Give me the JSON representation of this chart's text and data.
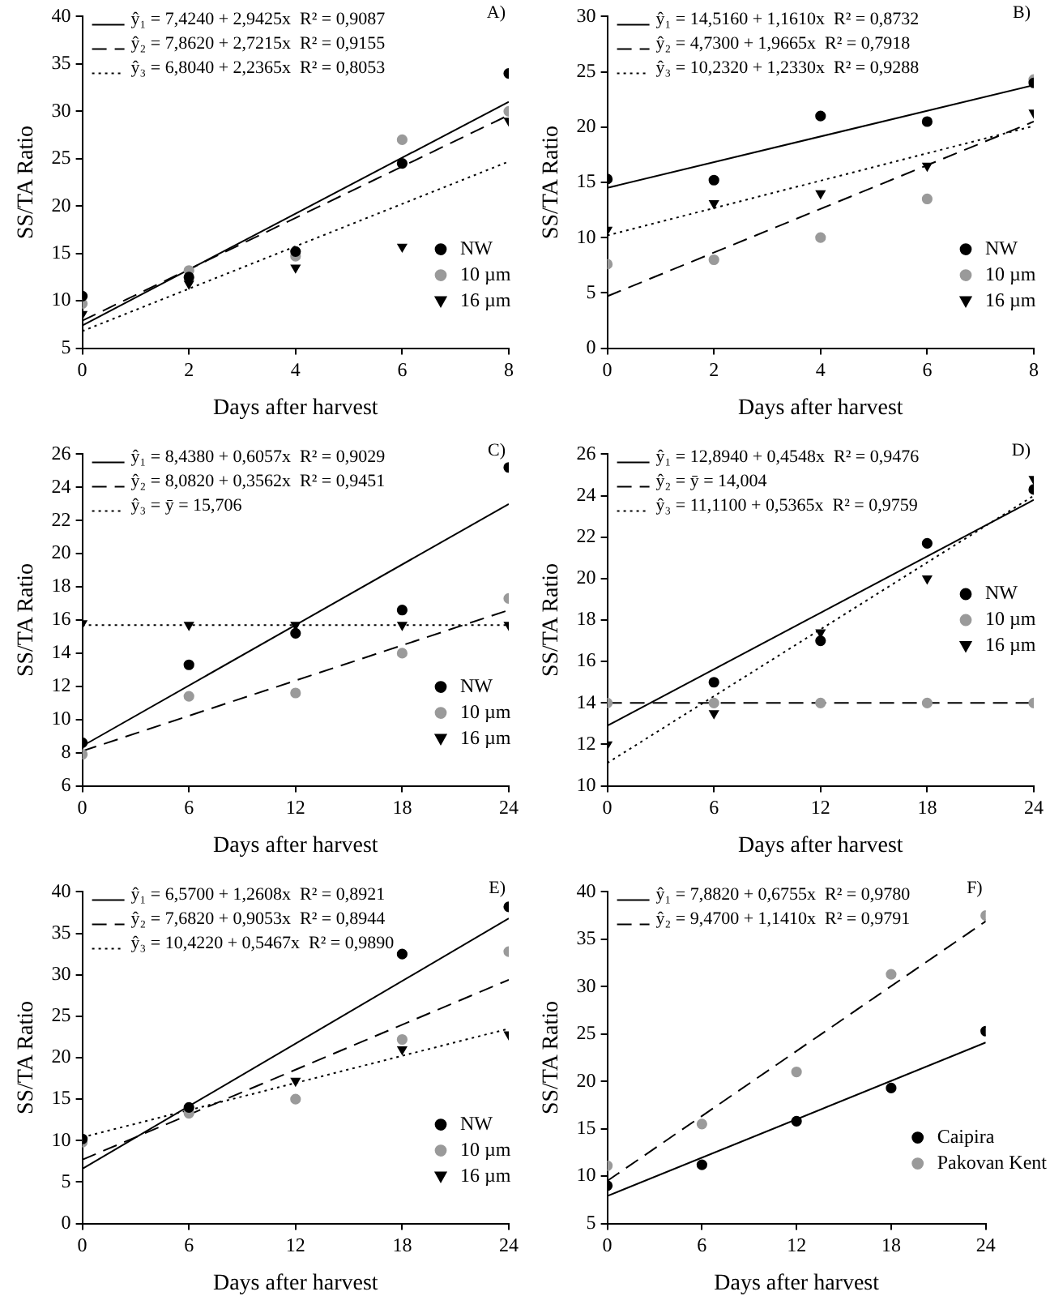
{
  "chart_data": [
    {
      "type": "scatter",
      "xlabel": "Days after harvest",
      "ylabel": "SS/TA Ratio",
      "x": [
        0,
        2,
        4,
        6,
        8
      ],
      "xlim": [
        0,
        8
      ],
      "xticks": [
        0,
        2,
        4,
        6,
        8
      ],
      "ylim": [
        5,
        40
      ],
      "yticks": [
        5,
        10,
        15,
        20,
        25,
        30,
        35,
        40
      ],
      "grid": false,
      "legend": "bottom right",
      "annotations": [
        "A)",
        "ŷ₁ = 7,4240 + 2,9425x  R² = 0,9087",
        "ŷ₂ = 7,8620 + 2,7215x  R² = 0,9155",
        "ŷ₃ = 6,8040 + 2,2365x  R² = 0,8053"
      ],
      "series": [
        {
          "type": "line",
          "x": [
            0,
            8
          ],
          "values": [
            7.4,
            31.0
          ],
          "color": "#000000",
          "line_style": "solid",
          "marker": "none"
        },
        {
          "type": "line",
          "x": [
            0,
            8
          ],
          "values": [
            7.9,
            29.6
          ],
          "color": "#000000",
          "line_style": "dashed",
          "marker": "none"
        },
        {
          "type": "line",
          "x": [
            0,
            8
          ],
          "values": [
            6.8,
            24.7
          ],
          "color": "#000000",
          "line_style": "dotted",
          "marker": "none"
        },
        {
          "name": "NW",
          "color": "#000000",
          "marker": "circle",
          "values": [
            10.5,
            12.5,
            15.2,
            24.5,
            34
          ]
        },
        {
          "name": "10 µm",
          "color": "#9a9a9a",
          "marker": "circle",
          "values": [
            9.7,
            13.2,
            14.7,
            27,
            30
          ]
        },
        {
          "name": "16 µm",
          "color": "#000000",
          "marker": "triangle",
          "values": [
            8.6,
            11.8,
            13.5,
            15.7,
            29
          ]
        }
      ]
    },
    {
      "type": "scatter",
      "xlabel": "Days after harvest",
      "ylabel": "SS/TA Ratio",
      "x": [
        0,
        2,
        4,
        6,
        8
      ],
      "xlim": [
        0,
        8
      ],
      "xticks": [
        0,
        2,
        4,
        6,
        8
      ],
      "ylim": [
        0,
        30
      ],
      "yticks": [
        0,
        5,
        10,
        15,
        20,
        25,
        30
      ],
      "grid": false,
      "legend": "bottom right",
      "annotations": [
        "B)",
        "ŷ₁ = 14,5160 + 1,1610x  R² = 0,8732",
        "ŷ₂ = 4,7300 + 1,9665x  R² = 0,7918",
        "ŷ₃ = 10,2320 + 1,2330x  R² = 0,9288"
      ],
      "series": [
        {
          "type": "line",
          "x": [
            0,
            8
          ],
          "values": [
            14.5,
            23.8
          ],
          "color": "#000000",
          "line_style": "solid",
          "marker": "none"
        },
        {
          "type": "line",
          "x": [
            0,
            8
          ],
          "values": [
            4.7,
            20.5
          ],
          "color": "#000000",
          "line_style": "dashed",
          "marker": "none"
        },
        {
          "type": "line",
          "x": [
            0,
            8
          ],
          "values": [
            10.2,
            20.1
          ],
          "color": "#000000",
          "line_style": "dotted",
          "marker": "none"
        },
        {
          "name": "NW",
          "color": "#000000",
          "marker": "circle",
          "values": [
            15.3,
            15.2,
            21,
            20.5,
            24
          ]
        },
        {
          "name": "10 µm",
          "color": "#9a9a9a",
          "marker": "circle",
          "values": [
            7.6,
            8,
            10,
            13.5,
            24.3
          ]
        },
        {
          "name": "16 µm",
          "color": "#000000",
          "marker": "triangle",
          "values": [
            10.7,
            13.1,
            14,
            16.5,
            21.3
          ]
        }
      ]
    },
    {
      "type": "scatter",
      "xlabel": "Days after harvest",
      "ylabel": "SS/TA Ratio",
      "x": [
        0,
        6,
        12,
        18,
        24
      ],
      "xlim": [
        0,
        24
      ],
      "xticks": [
        0,
        6,
        12,
        18,
        24
      ],
      "ylim": [
        6,
        26
      ],
      "yticks": [
        6,
        8,
        10,
        12,
        14,
        16,
        18,
        20,
        22,
        24,
        26
      ],
      "grid": false,
      "legend": "bottom right",
      "annotations": [
        "C)",
        "ŷ₁ = 8,4380 + 0,6057x  R² = 0,9029",
        "ŷ₂ = 8,0820 + 0,3562x  R² = 0,9451",
        "ŷ₃ = ȳ = 15,706"
      ],
      "series": [
        {
          "type": "line",
          "x": [
            0,
            24
          ],
          "values": [
            8.4,
            23.0
          ],
          "color": "#000000",
          "line_style": "solid",
          "marker": "none"
        },
        {
          "type": "line",
          "x": [
            0,
            24
          ],
          "values": [
            8.1,
            16.6
          ],
          "color": "#000000",
          "line_style": "dashed",
          "marker": "none"
        },
        {
          "type": "line",
          "x": [
            0,
            24
          ],
          "values": [
            15.7,
            15.7
          ],
          "color": "#000000",
          "line_style": "dotted",
          "marker": "none"
        },
        {
          "name": "NW",
          "color": "#000000",
          "marker": "circle",
          "values": [
            8.6,
            13.3,
            15.2,
            16.6,
            25.2
          ]
        },
        {
          "name": "10 µm",
          "color": "#9a9a9a",
          "marker": "circle",
          "values": [
            7.9,
            11.4,
            11.6,
            14,
            17.3
          ]
        },
        {
          "name": "16 µm",
          "color": "#000000",
          "marker": "triangle",
          "values": [
            15.8,
            15.7,
            15.7,
            15.7,
            15.7
          ]
        }
      ]
    },
    {
      "type": "scatter",
      "xlabel": "Days after harvest",
      "ylabel": "SS/TA Ratio",
      "x": [
        0,
        6,
        12,
        18,
        24
      ],
      "xlim": [
        0,
        24
      ],
      "xticks": [
        0,
        6,
        12,
        18,
        24
      ],
      "ylim": [
        10,
        26
      ],
      "yticks": [
        10,
        12,
        14,
        16,
        18,
        20,
        22,
        24,
        26
      ],
      "grid": false,
      "legend": "right",
      "annotations": [
        "D)",
        "ŷ₁ = 12,8940 + 0,4548x  R² = 0,9476",
        "ŷ₂ = ȳ = 14,004",
        "ŷ₃ = 11,1100 + 0,5365x  R² = 0,9759"
      ],
      "series": [
        {
          "type": "line",
          "x": [
            0,
            24
          ],
          "values": [
            12.9,
            23.8
          ],
          "color": "#000000",
          "line_style": "solid",
          "marker": "none"
        },
        {
          "type": "line",
          "x": [
            0,
            24
          ],
          "values": [
            14.0,
            14.0
          ],
          "color": "#000000",
          "line_style": "dashed",
          "marker": "none"
        },
        {
          "type": "line",
          "x": [
            0,
            24
          ],
          "values": [
            11.1,
            24.0
          ],
          "color": "#000000",
          "line_style": "dotted",
          "marker": "none"
        },
        {
          "name": "NW",
          "color": "#000000",
          "marker": "circle",
          "values": [
            null,
            15,
            17,
            21.7,
            24.3
          ]
        },
        {
          "name": "10 µm",
          "color": "#9a9a9a",
          "marker": "circle",
          "values": [
            14,
            14,
            14,
            14,
            14
          ]
        },
        {
          "name": "16 µm",
          "color": "#000000",
          "marker": "triangle",
          "values": [
            12,
            13.5,
            17.4,
            20,
            24.8
          ]
        }
      ]
    },
    {
      "type": "scatter",
      "xlabel": "Days after harvest",
      "ylabel": "SS/TA Ratio",
      "x": [
        0,
        6,
        12,
        18,
        24
      ],
      "xlim": [
        0,
        24
      ],
      "xticks": [
        0,
        6,
        12,
        18,
        24
      ],
      "ylim": [
        0,
        40
      ],
      "yticks": [
        0,
        5,
        10,
        15,
        20,
        25,
        30,
        35,
        40
      ],
      "grid": false,
      "legend": "bottom right",
      "annotations": [
        "E)",
        "ŷ₁ = 6,5700 + 1,2608x  R² = 0,8921",
        "ŷ₂ = 7,6820 + 0,9053x  R² = 0,8944",
        "ŷ₃ = 10,4220 + 0,5467x  R² = 0,9890"
      ],
      "series": [
        {
          "type": "line",
          "x": [
            0,
            24
          ],
          "values": [
            6.6,
            36.8
          ],
          "color": "#000000",
          "line_style": "solid",
          "marker": "none"
        },
        {
          "type": "line",
          "x": [
            0,
            24
          ],
          "values": [
            7.7,
            29.4
          ],
          "color": "#000000",
          "line_style": "dashed",
          "marker": "none"
        },
        {
          "type": "line",
          "x": [
            0,
            24
          ],
          "values": [
            10.4,
            23.5
          ],
          "color": "#000000",
          "line_style": "dotted",
          "marker": "none"
        },
        {
          "name": "NW",
          "color": "#000000",
          "marker": "circle",
          "values": [
            10.2,
            14,
            null,
            32.5,
            38.2
          ]
        },
        {
          "name": "10 µm",
          "color": "#9a9a9a",
          "marker": "circle",
          "values": [
            9.8,
            13.3,
            15,
            22.2,
            32.8
          ]
        },
        {
          "name": "16 µm",
          "color": "#000000",
          "marker": "triangle",
          "values": [
            null,
            null,
            17.2,
            21,
            22.8
          ]
        }
      ]
    },
    {
      "type": "scatter",
      "xlabel": "Days after harvest",
      "ylabel": "SS/TA Ratio",
      "x": [
        0,
        6,
        12,
        18,
        24
      ],
      "xlim": [
        0,
        24
      ],
      "xticks": [
        0,
        6,
        12,
        18,
        24
      ],
      "ylim": [
        5,
        40
      ],
      "yticks": [
        5,
        10,
        15,
        20,
        25,
        30,
        35,
        40
      ],
      "grid": false,
      "legend": "bottom right",
      "annotations": [
        "F)",
        "ŷ₁ = 7,8820 + 0,6755x  R² = 0,9780",
        "ŷ₂ = 9,4700 + 1,1410x  R² = 0,9791"
      ],
      "series": [
        {
          "type": "line",
          "x": [
            0,
            24
          ],
          "values": [
            7.9,
            24.1
          ],
          "color": "#000000",
          "line_style": "solid",
          "marker": "none"
        },
        {
          "type": "line",
          "x": [
            0,
            24
          ],
          "values": [
            9.5,
            36.9
          ],
          "color": "#000000",
          "line_style": "dashed",
          "marker": "none"
        },
        {
          "name": "Caipira",
          "color": "#000000",
          "marker": "circle",
          "values": [
            9,
            11.2,
            15.8,
            19.3,
            25.3
          ]
        },
        {
          "name": "Pakovan Kent",
          "color": "#9a9a9a",
          "marker": "circle",
          "values": [
            11.1,
            15.5,
            21,
            31.3,
            37.5
          ]
        }
      ]
    }
  ]
}
